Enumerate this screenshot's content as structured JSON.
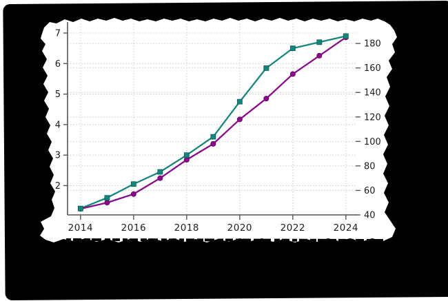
{
  "chart_data": {
    "type": "line",
    "x": [
      2014,
      2015,
      2016,
      2017,
      2018,
      2019,
      2020,
      2021,
      2022,
      2023,
      2024
    ],
    "series": [
      {
        "name": "teal-series",
        "axis": "left",
        "color": "#15867c",
        "marker": "square",
        "values": [
          1.25,
          1.6,
          2.05,
          2.45,
          3.0,
          3.6,
          4.75,
          5.85,
          6.5,
          6.7,
          6.9
        ]
      },
      {
        "name": "purple-series",
        "axis": "right",
        "color": "#8a0b8a",
        "marker": "circle",
        "values": [
          45,
          50,
          57,
          70,
          85,
          98,
          118,
          135,
          155,
          170,
          185
        ]
      }
    ],
    "x_axis": {
      "ticks": [
        "2014",
        "2016",
        "2018",
        "2020",
        "2022",
        "2024"
      ],
      "tick_values": [
        2014,
        2016,
        2018,
        2020,
        2022,
        2024
      ],
      "range": [
        2013.51,
        2024.42
      ]
    },
    "left_axis": {
      "ticks": [
        "2",
        "3",
        "4",
        "5",
        "6",
        "7"
      ],
      "tick_values": [
        2,
        3,
        4,
        5,
        6,
        7
      ],
      "range": [
        1.04,
        7.18
      ]
    },
    "right_axis": {
      "ticks": [
        "40",
        "60",
        "80",
        "100",
        "120",
        "140",
        "160",
        "180"
      ],
      "tick_values": [
        40,
        60,
        80,
        100,
        120,
        140,
        160,
        180
      ],
      "range": [
        40,
        193
      ]
    },
    "grid": "dotted",
    "legend": "none"
  },
  "colors": {
    "background_mask": "#000000",
    "paper": "#ffffff",
    "grid": "#c9c9c9",
    "spine": "#555555",
    "tick_label": "#1c1c1c"
  }
}
